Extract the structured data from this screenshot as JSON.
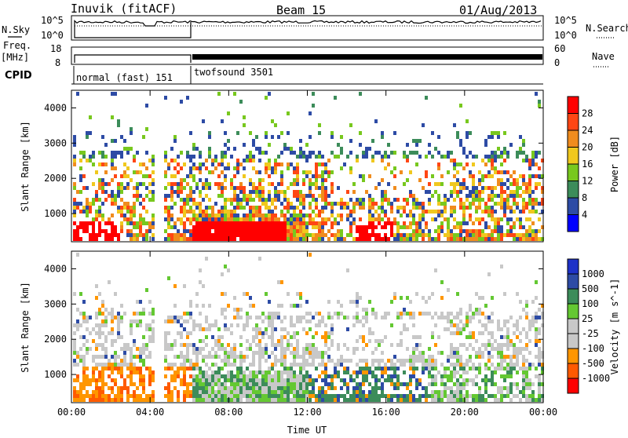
{
  "header": {
    "station": "Inuvik (fitACF)",
    "beam": "Beam 15",
    "date": "01/Aug/2013"
  },
  "side_labels": {
    "nsky": "N.Sky",
    "nsearch": "N.Search",
    "freq": "Freq.",
    "freq_unit": "[MHz]",
    "nave": "Nave",
    "cpid": "CPID"
  },
  "cpid_labels": {
    "first": "normal (fast) 151",
    "second": "twofsound 3501"
  },
  "noise_axis": {
    "left_top": "10^5",
    "left_bottom": "10^0",
    "right_top": "10^5",
    "right_bottom": "10^0"
  },
  "freq_axis": {
    "left_top": "18",
    "left_bottom": "8",
    "right_top": "60",
    "right_bottom": "0"
  },
  "colors": {
    "power": [
      "#0000ff",
      "#2d4ba5",
      "#3c8c5a",
      "#78c81e",
      "#f0c81e",
      "#f08c1e",
      "#ff4614",
      "#ff0000"
    ],
    "velocity": [
      "#ff0000",
      "#ff5a00",
      "#ff9600",
      "#c8c8c8",
      "#c8c8c8",
      "#64c832",
      "#3c8c5a",
      "#2d4ba5",
      "#1e32c8"
    ]
  },
  "chart_data": [
    {
      "type": "heatmap",
      "panel": "power",
      "xlabel": "",
      "ylabel": "Slant Range [km]",
      "x_ticks": [
        "00:00",
        "04:00",
        "08:00",
        "12:00",
        "16:00",
        "20:00",
        "00:00"
      ],
      "y_ticks": [
        1000,
        2000,
        3000,
        4000
      ],
      "ylim": [
        200,
        4500
      ],
      "colorbar": {
        "label": "Power [dB]",
        "ticks": [
          4,
          8,
          12,
          16,
          20,
          24,
          28
        ],
        "range": [
          0,
          32
        ]
      }
    },
    {
      "type": "heatmap",
      "panel": "velocity",
      "xlabel": "Time UT",
      "ylabel": "Slant Range [km]",
      "x_ticks": [
        "00:00",
        "04:00",
        "08:00",
        "12:00",
        "16:00",
        "20:00",
        "00:00"
      ],
      "y_ticks": [
        1000,
        2000,
        3000,
        4000
      ],
      "ylim": [
        200,
        4500
      ],
      "colorbar": {
        "label": "Velocity [m s^-1]",
        "ticks": [
          1000,
          500,
          100,
          25,
          -25,
          -100,
          -500,
          -1000
        ]
      }
    }
  ]
}
